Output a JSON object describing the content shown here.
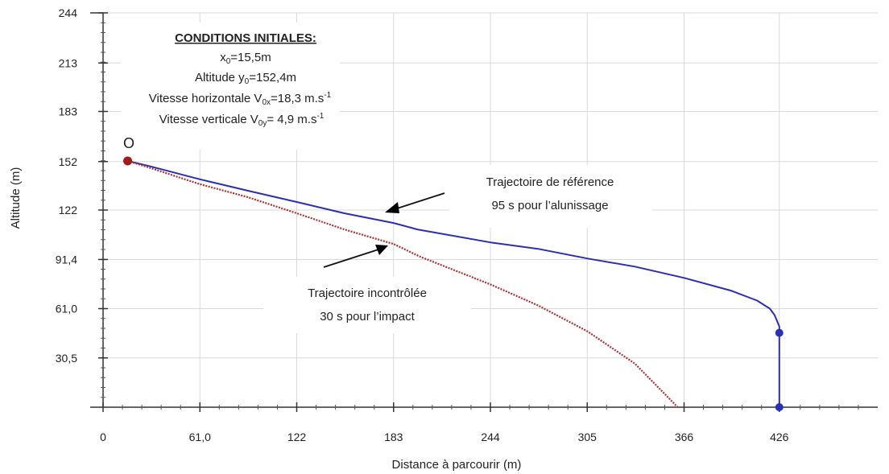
{
  "chart_data": {
    "type": "line",
    "xlabel": "Distance à parcourir (m)",
    "ylabel": "Altitude  (m)",
    "xlim": [
      0,
      488
    ],
    "ylim": [
      0,
      244
    ],
    "x_tick_labels": [
      "0",
      "61,0",
      "122",
      "183",
      "244",
      "305",
      "366",
      "426"
    ],
    "x_tick_values": [
      0,
      61,
      122,
      183,
      244,
      305,
      366,
      426
    ],
    "y_tick_labels": [
      "30,5",
      "61,0",
      "91,4",
      "122",
      "152",
      "183",
      "213",
      "244"
    ],
    "y_tick_values": [
      30.5,
      61.0,
      91.4,
      122,
      152,
      183,
      213,
      244
    ],
    "grid": true,
    "origin_label": "O",
    "conditions": {
      "title": "CONDITIONS INITIALES:",
      "x0": {
        "symbol": "x",
        "sub": "0",
        "value": "=15,5m"
      },
      "y0": {
        "prefix": "Altitude y",
        "sub": "0",
        "value": "=152,4m"
      },
      "v0x": {
        "prefix": "Vitesse horizontale V",
        "sub": "0x",
        "value": "=18,3 m.s",
        "sup": "-1"
      },
      "v0y": {
        "prefix": "Vitesse verticale V",
        "sub": "0y",
        "value": "= 4,9 m.s",
        "sup": "-1"
      }
    },
    "series": [
      {
        "color": "#2b2fb5",
        "style": "solid",
        "points": [
          [
            15.5,
            152.4
          ],
          [
            30,
            149
          ],
          [
            61,
            141
          ],
          [
            91,
            134
          ],
          [
            122,
            127
          ],
          [
            152,
            120
          ],
          [
            183,
            114
          ],
          [
            198,
            110
          ],
          [
            244,
            102
          ],
          [
            274,
            98
          ],
          [
            305,
            92
          ],
          [
            335,
            87
          ],
          [
            366,
            80
          ],
          [
            396,
            72
          ],
          [
            412,
            66
          ],
          [
            420,
            61
          ],
          [
            423,
            57
          ],
          [
            426,
            50
          ],
          [
            426,
            0
          ]
        ],
        "markers": [
          [
            426,
            46
          ],
          [
            426,
            0
          ]
        ]
      },
      {
        "color": "#b03030",
        "style": "dotted",
        "points": [
          [
            15.5,
            152.4
          ],
          [
            30,
            148
          ],
          [
            61,
            138
          ],
          [
            91,
            130
          ],
          [
            122,
            120
          ],
          [
            152,
            110
          ],
          [
            183,
            101
          ],
          [
            200,
            93
          ],
          [
            244,
            76
          ],
          [
            274,
            63
          ],
          [
            305,
            47
          ],
          [
            335,
            27
          ],
          [
            350,
            12
          ],
          [
            362,
            0
          ]
        ]
      }
    ],
    "annotations": [
      {
        "lines": [
          "Trajectoire de référence",
          "95 s pour l’alunissage"
        ]
      },
      {
        "lines": [
          "Trajectoire incontrôlée",
          "30 s pour l’impact"
        ]
      }
    ]
  }
}
